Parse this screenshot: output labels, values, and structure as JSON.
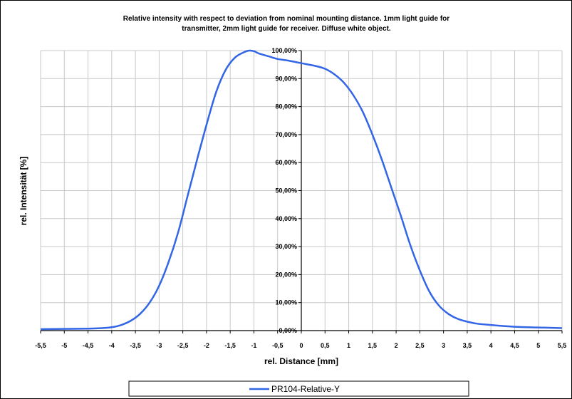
{
  "chart_data": {
    "type": "line",
    "title_lines": [
      "Relative intensity with respect to deviation from nominal mounting distance. 1mm light guide for",
      "transmitter, 2mm light guide for receiver. Diffuse white object."
    ],
    "xlabel": "rel. Distance [mm]",
    "ylabel": "rel. Intensität [%]",
    "xlim": [
      -5.5,
      5.5
    ],
    "ylim": [
      0,
      100
    ],
    "x_ticks": [
      "-5,5",
      "-5",
      "-4,5",
      "-4",
      "-3,5",
      "-3",
      "-2,5",
      "-2",
      "-1,5",
      "-1",
      "-0,5",
      "0",
      "0,5",
      "1",
      "1,5",
      "2",
      "2,5",
      "3",
      "3,5",
      "4",
      "4,5",
      "5",
      "5,5"
    ],
    "y_ticks": [
      "0,00%",
      "10,00%",
      "20,00%",
      "30,00%",
      "40,00%",
      "50,00%",
      "60,00%",
      "70,00%",
      "80,00%",
      "90,00%",
      "100,00%"
    ],
    "grid": true,
    "legend_position": "bottom",
    "series": [
      {
        "name": "PR104-Relative-Y",
        "color": "#3366e6",
        "x": [
          -5.5,
          -5,
          -4.5,
          -4.2,
          -4,
          -3.8,
          -3.6,
          -3.4,
          -3.2,
          -3,
          -2.8,
          -2.6,
          -2.4,
          -2.2,
          -2,
          -1.8,
          -1.6,
          -1.4,
          -1.2,
          -1.1,
          -1,
          -0.9,
          -0.7,
          -0.5,
          -0.3,
          0,
          0.3,
          0.5,
          0.7,
          0.9,
          1.1,
          1.3,
          1.5,
          1.7,
          1.9,
          2.1,
          2.3,
          2.5,
          2.7,
          2.9,
          3.1,
          3.3,
          3.5,
          3.7,
          4,
          4.3,
          4.6,
          5,
          5.3,
          5.5
        ],
        "y": [
          0.5,
          0.6,
          0.7,
          0.9,
          1.2,
          2,
          3.5,
          6,
          10,
          16,
          24.5,
          35,
          48,
          61,
          73.5,
          85,
          93,
          97.5,
          99.5,
          100,
          99.8,
          99,
          98,
          97,
          96.5,
          95.5,
          94.5,
          93.5,
          91.5,
          88.5,
          84,
          78,
          70,
          61,
          51,
          41,
          30.5,
          21.5,
          14,
          9,
          6,
          4.2,
          3.2,
          2.5,
          2,
          1.6,
          1.3,
          1.1,
          1,
          0.9
        ]
      }
    ]
  }
}
